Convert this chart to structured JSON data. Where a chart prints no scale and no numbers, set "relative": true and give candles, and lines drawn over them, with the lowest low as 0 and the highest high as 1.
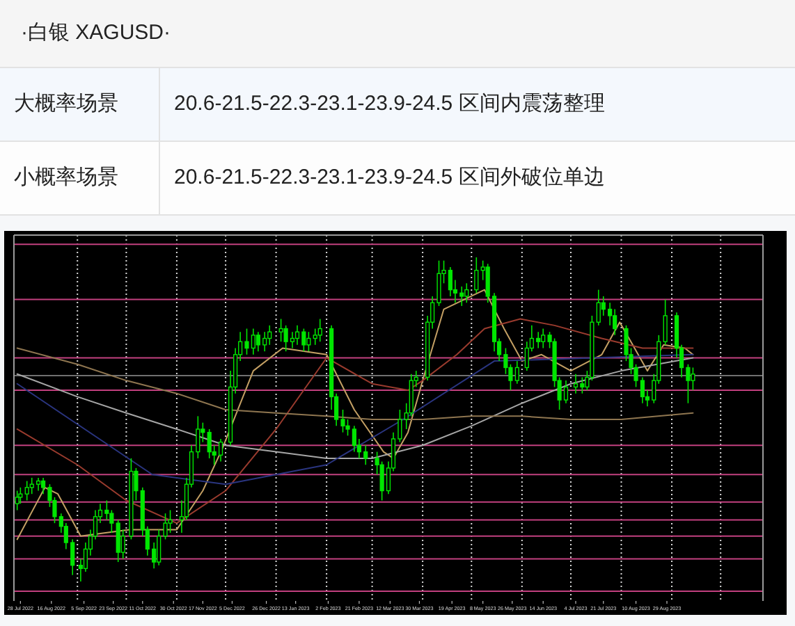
{
  "chart_data": {
    "type": "candlestick",
    "title": "·白银 XAGUSD·",
    "annotations": [
      "大概率场景",
      "20.6-21.5-22.3-23.1-23.9-24.5 区间内震荡整理",
      "小概率场景",
      "20.6-21.5-22.3-23.1-23.9-24.5 区间外破位单边"
    ],
    "relative": true,
    "color": "#00e600",
    "xlim": [
      "2022-07-24",
      "2023-10-27"
    ],
    "xticks": [
      {
        "value": "2022-07-28",
        "label": "28 Jul 2022"
      },
      {
        "value": "2022-08-16",
        "label": "16 Aug 2022"
      },
      {
        "value": "2022-09-05",
        "label": "5 Sep 2022"
      },
      {
        "value": "2022-09-23",
        "label": "23 Sep 2022"
      },
      {
        "value": "2022-10-11",
        "label": "11 Oct 2022"
      },
      {
        "value": "2022-10-30",
        "label": "30 Oct 2022"
      },
      {
        "value": "2022-11-17",
        "label": "17 Nov 2022"
      },
      {
        "value": "2022-12-05",
        "label": "5 Dec 2022"
      },
      {
        "value": "2022-12-26",
        "label": "26 Dec 2022"
      },
      {
        "value": "2023-01-13",
        "label": "13 Jan 2023"
      },
      {
        "value": "2023-02-02",
        "label": "2 Feb 2023"
      },
      {
        "value": "2023-02-21",
        "label": "21 Feb 2023"
      },
      {
        "value": "2023-03-12",
        "label": "12 Mar 2023"
      },
      {
        "value": "2023-03-30",
        "label": "30 Mar 2023"
      },
      {
        "value": "2023-04-19",
        "label": "19 Apr 2023"
      },
      {
        "value": "2023-05-08",
        "label": "8 May 2023"
      },
      {
        "value": "2023-05-26",
        "label": "26 May 2023"
      },
      {
        "value": "2023-06-14",
        "label": "14 Jun 2023"
      },
      {
        "value": "2023-07-04",
        "label": "4 Jul 2023"
      },
      {
        "value": "2023-07-21",
        "label": "21 Jul 2023"
      },
      {
        "value": "2023-08-10",
        "label": "10 Aug 2023"
      },
      {
        "value": "2023-08-29",
        "label": "29 Aug 2023"
      }
    ],
    "x": [
      "2022-07-26",
      "2022-07-28",
      "2022-08-01",
      "2022-08-04",
      "2022-08-08",
      "2022-08-11",
      "2022-08-15",
      "2022-08-18",
      "2022-08-22",
      "2022-08-25",
      "2022-08-29",
      "2022-09-03",
      "2022-09-06",
      "2022-09-09",
      "2022-09-12",
      "2022-09-15",
      "2022-09-19",
      "2022-09-22",
      "2022-09-26",
      "2022-09-29",
      "2022-10-04",
      "2022-10-07",
      "2022-10-11",
      "2022-10-14",
      "2022-10-18",
      "2022-10-21",
      "2022-10-25",
      "2022-10-28",
      "2022-11-04",
      "2022-11-07",
      "2022-11-10",
      "2022-11-14",
      "2022-11-17",
      "2022-11-21",
      "2022-11-24",
      "2022-11-28",
      "2022-12-04",
      "2022-12-07",
      "2022-12-10",
      "2022-12-14",
      "2022-12-18",
      "2022-12-21",
      "2022-12-25",
      "2022-12-28",
      "2023-01-04",
      "2023-01-07",
      "2023-01-11",
      "2023-01-14",
      "2023-01-18",
      "2023-01-21",
      "2023-01-25",
      "2023-01-28",
      "2023-02-04",
      "2023-02-07",
      "2023-02-11",
      "2023-02-14",
      "2023-02-18",
      "2023-02-21",
      "2023-02-25",
      "2023-03-04",
      "2023-03-07",
      "2023-03-11",
      "2023-03-14",
      "2023-03-18",
      "2023-03-22",
      "2023-03-25",
      "2023-03-28",
      "2023-04-04",
      "2023-04-07",
      "2023-04-11",
      "2023-04-14",
      "2023-04-18",
      "2023-04-21",
      "2023-04-25",
      "2023-04-28",
      "2023-05-04",
      "2023-05-08",
      "2023-05-11",
      "2023-05-15",
      "2023-05-18",
      "2023-05-22",
      "2023-05-25",
      "2023-05-29",
      "2023-06-04",
      "2023-06-07",
      "2023-06-11",
      "2023-06-14",
      "2023-06-18",
      "2023-06-21",
      "2023-06-24",
      "2023-06-28",
      "2023-07-04",
      "2023-07-08",
      "2023-07-11",
      "2023-07-14",
      "2023-07-18",
      "2023-07-21",
      "2023-07-25",
      "2023-07-28",
      "2023-08-04",
      "2023-08-07",
      "2023-08-10",
      "2023-08-14",
      "2023-08-17",
      "2023-08-21",
      "2023-08-24",
      "2023-08-28",
      "2023-09-04",
      "2023-09-07",
      "2023-09-11",
      "2023-09-14"
    ],
    "ohlc": [
      [
        0.24,
        0.28,
        0.22,
        0.26
      ],
      [
        0.26,
        0.29,
        0.24,
        0.27
      ],
      [
        0.27,
        0.31,
        0.25,
        0.29
      ],
      [
        0.29,
        0.32,
        0.27,
        0.3
      ],
      [
        0.3,
        0.32,
        0.28,
        0.31
      ],
      [
        0.31,
        0.32,
        0.27,
        0.29
      ],
      [
        0.29,
        0.3,
        0.23,
        0.25
      ],
      [
        0.25,
        0.26,
        0.18,
        0.2
      ],
      [
        0.2,
        0.21,
        0.15,
        0.17
      ],
      [
        0.17,
        0.18,
        0.1,
        0.12
      ],
      [
        0.12,
        0.13,
        0.02,
        0.05
      ],
      [
        0.05,
        0.07,
        0,
        0.04
      ],
      [
        0.04,
        0.12,
        0.03,
        0.1
      ],
      [
        0.1,
        0.16,
        0.08,
        0.14
      ],
      [
        0.14,
        0.22,
        0.13,
        0.2
      ],
      [
        0.2,
        0.24,
        0.18,
        0.22
      ],
      [
        0.22,
        0.25,
        0.19,
        0.21
      ],
      [
        0.21,
        0.22,
        0.15,
        0.18
      ],
      [
        0.18,
        0.19,
        0.06,
        0.09
      ],
      [
        0.09,
        0.16,
        0.07,
        0.14
      ],
      [
        0.14,
        0.38,
        0.13,
        0.34
      ],
      [
        0.34,
        0.35,
        0.25,
        0.28
      ],
      [
        0.28,
        0.29,
        0.14,
        0.16
      ],
      [
        0.16,
        0.17,
        0.08,
        0.1
      ],
      [
        0.1,
        0.12,
        0.04,
        0.06
      ],
      [
        0.06,
        0.16,
        0.05,
        0.14
      ],
      [
        0.14,
        0.21,
        0.13,
        0.18
      ],
      [
        0.18,
        0.22,
        0.15,
        0.19
      ],
      [
        0.19,
        0.25,
        0.15,
        0.2
      ],
      [
        0.2,
        0.32,
        0.19,
        0.3
      ],
      [
        0.3,
        0.42,
        0.29,
        0.4
      ],
      [
        0.4,
        0.51,
        0.38,
        0.47
      ],
      [
        0.47,
        0.49,
        0.43,
        0.46
      ],
      [
        0.46,
        0.47,
        0.38,
        0.4
      ],
      [
        0.4,
        0.42,
        0.36,
        0.39
      ],
      [
        0.39,
        0.44,
        0.37,
        0.43
      ],
      [
        0.43,
        0.65,
        0.42,
        0.6
      ],
      [
        0.6,
        0.72,
        0.58,
        0.7
      ],
      [
        0.7,
        0.77,
        0.68,
        0.74
      ],
      [
        0.74,
        0.78,
        0.7,
        0.72
      ],
      [
        0.72,
        0.78,
        0.7,
        0.76
      ],
      [
        0.76,
        0.77,
        0.71,
        0.73
      ],
      [
        0.73,
        0.77,
        0.71,
        0.75
      ],
      [
        0.75,
        0.79,
        0.73,
        0.77
      ],
      [
        0.77,
        0.81,
        0.74,
        0.78
      ],
      [
        0.78,
        0.79,
        0.71,
        0.74
      ],
      [
        0.74,
        0.77,
        0.72,
        0.75
      ],
      [
        0.75,
        0.79,
        0.73,
        0.77
      ],
      [
        0.77,
        0.78,
        0.71,
        0.73
      ],
      [
        0.73,
        0.77,
        0.71,
        0.75
      ],
      [
        0.75,
        0.78,
        0.73,
        0.76
      ],
      [
        0.76,
        0.81,
        0.74,
        0.78
      ],
      [
        0.78,
        0.79,
        0.53,
        0.57
      ],
      [
        0.57,
        0.58,
        0.48,
        0.5
      ],
      [
        0.5,
        0.53,
        0.46,
        0.48
      ],
      [
        0.48,
        0.5,
        0.45,
        0.47
      ],
      [
        0.47,
        0.48,
        0.4,
        0.42
      ],
      [
        0.42,
        0.44,
        0.38,
        0.4
      ],
      [
        0.4,
        0.42,
        0.36,
        0.38
      ],
      [
        0.38,
        0.4,
        0.33,
        0.36
      ],
      [
        0.36,
        0.37,
        0.25,
        0.28
      ],
      [
        0.28,
        0.37,
        0.27,
        0.35
      ],
      [
        0.35,
        0.46,
        0.34,
        0.44
      ],
      [
        0.44,
        0.53,
        0.43,
        0.5
      ],
      [
        0.5,
        0.55,
        0.47,
        0.52
      ],
      [
        0.52,
        0.64,
        0.51,
        0.62
      ],
      [
        0.62,
        0.65,
        0.6,
        0.63
      ],
      [
        0.63,
        0.82,
        0.62,
        0.8
      ],
      [
        0.8,
        0.88,
        0.78,
        0.86
      ],
      [
        0.86,
        0.99,
        0.85,
        0.95
      ],
      [
        0.95,
        0.99,
        0.92,
        0.96
      ],
      [
        0.96,
        0.97,
        0.88,
        0.9
      ],
      [
        0.9,
        0.93,
        0.86,
        0.89
      ],
      [
        0.89,
        0.91,
        0.85,
        0.88
      ],
      [
        0.88,
        0.92,
        0.86,
        0.9
      ],
      [
        0.9,
        1,
        0.89,
        0.96
      ],
      [
        0.96,
        0.99,
        0.93,
        0.97
      ],
      [
        0.97,
        0.98,
        0.86,
        0.88
      ],
      [
        0.88,
        0.89,
        0.71,
        0.74
      ],
      [
        0.74,
        0.75,
        0.68,
        0.7
      ],
      [
        0.7,
        0.72,
        0.64,
        0.66
      ],
      [
        0.66,
        0.67,
        0.59,
        0.62
      ],
      [
        0.62,
        0.68,
        0.61,
        0.66
      ],
      [
        0.66,
        0.74,
        0.65,
        0.72
      ],
      [
        0.72,
        0.79,
        0.71,
        0.75
      ],
      [
        0.75,
        0.77,
        0.72,
        0.74
      ],
      [
        0.74,
        0.78,
        0.72,
        0.76
      ],
      [
        0.76,
        0.77,
        0.72,
        0.74
      ],
      [
        0.74,
        0.75,
        0.6,
        0.62
      ],
      [
        0.62,
        0.63,
        0.53,
        0.56
      ],
      [
        0.56,
        0.62,
        0.55,
        0.6
      ],
      [
        0.6,
        0.64,
        0.58,
        0.61
      ],
      [
        0.61,
        0.63,
        0.58,
        0.6
      ],
      [
        0.6,
        0.65,
        0.59,
        0.63
      ],
      [
        0.63,
        0.82,
        0.62,
        0.8
      ],
      [
        0.8,
        0.9,
        0.79,
        0.86
      ],
      [
        0.86,
        0.88,
        0.82,
        0.84
      ],
      [
        0.84,
        0.86,
        0.79,
        0.82
      ],
      [
        0.82,
        0.84,
        0.76,
        0.78
      ],
      [
        0.78,
        0.79,
        0.68,
        0.7
      ],
      [
        0.7,
        0.72,
        0.64,
        0.66
      ],
      [
        0.66,
        0.67,
        0.6,
        0.62
      ],
      [
        0.62,
        0.63,
        0.55,
        0.57
      ],
      [
        0.57,
        0.59,
        0.54,
        0.56
      ],
      [
        0.56,
        0.64,
        0.55,
        0.62
      ],
      [
        0.62,
        0.76,
        0.61,
        0.74
      ],
      [
        0.74,
        0.87,
        0.73,
        0.82
      ],
      [
        0.82,
        0.83,
        0.69,
        0.72
      ],
      [
        0.72,
        0.73,
        0.63,
        0.66
      ],
      [
        0.66,
        0.67,
        0.55,
        0.62
      ],
      [
        0.62,
        0.66,
        0.59,
        0.64
      ]
    ],
    "series": [
      {
        "type": "line",
        "color": "#c4a064",
        "x": [
          "2022-07-26",
          "2022-08-12",
          "2022-08-20",
          "2022-09-03",
          "2022-10-03",
          "2022-11-01",
          "2022-11-17",
          "2022-11-29",
          "2022-12-18",
          "2023-01-05",
          "2023-02-01",
          "2023-02-18",
          "2023-03-08",
          "2023-03-14",
          "2023-03-23",
          "2023-04-01",
          "2023-04-14",
          "2023-05-09",
          "2023-05-21",
          "2023-06-01",
          "2023-06-13",
          "2023-07-01",
          "2023-07-20",
          "2023-07-31",
          "2023-08-08",
          "2023-08-17",
          "2023-08-27",
          "2023-09-09",
          "2023-09-14"
        ],
        "values": [
          0.13,
          0.29,
          0.27,
          0.14,
          0.16,
          0.16,
          0.28,
          0.41,
          0.65,
          0.72,
          0.7,
          0.53,
          0.4,
          0.38,
          0.46,
          0.62,
          0.84,
          0.9,
          0.78,
          0.68,
          0.7,
          0.65,
          0.7,
          0.8,
          0.73,
          0.65,
          0.73,
          0.72,
          0.7
        ]
      },
      {
        "type": "line",
        "color": "#9a3b2e",
        "x": [
          "2022-07-26",
          "2022-09-01",
          "2022-10-01",
          "2022-11-01",
          "2022-12-01",
          "2023-01-01",
          "2023-02-01",
          "2023-03-01",
          "2023-03-23",
          "2023-04-01",
          "2023-04-22",
          "2023-05-09",
          "2023-05-31",
          "2023-06-21",
          "2023-07-20",
          "2023-08-14",
          "2023-09-14"
        ],
        "values": [
          0.47,
          0.36,
          0.25,
          0.18,
          0.28,
          0.47,
          0.69,
          0.61,
          0.59,
          0.62,
          0.7,
          0.78,
          0.81,
          0.79,
          0.75,
          0.72,
          0.72
        ]
      },
      {
        "type": "line",
        "color": "#a6a6a6",
        "x": [
          "2022-07-26",
          "2022-09-01",
          "2022-10-01",
          "2022-11-01",
          "2022-12-01",
          "2023-01-01",
          "2023-02-01",
          "2023-03-01",
          "2023-04-01",
          "2023-05-01",
          "2023-06-01",
          "2023-07-01",
          "2023-08-01",
          "2023-09-14"
        ],
        "values": [
          0.64,
          0.57,
          0.52,
          0.47,
          0.42,
          0.4,
          0.38,
          0.38,
          0.42,
          0.48,
          0.55,
          0.61,
          0.65,
          0.69
        ]
      },
      {
        "type": "line",
        "color": "#8f7650",
        "x": [
          "2022-07-26",
          "2022-09-01",
          "2022-10-01",
          "2022-11-01",
          "2022-12-01",
          "2023-01-01",
          "2023-02-01",
          "2023-03-01",
          "2023-04-01",
          "2023-05-01",
          "2023-06-01",
          "2023-07-01",
          "2023-08-01",
          "2023-09-14"
        ],
        "values": [
          0.72,
          0.67,
          0.62,
          0.58,
          0.53,
          0.52,
          0.51,
          0.5,
          0.5,
          0.51,
          0.51,
          0.5,
          0.5,
          0.52
        ]
      },
      {
        "type": "line",
        "color": "#2a3580",
        "x": [
          "2022-07-26",
          "2022-10-17",
          "2022-12-01",
          "2023-02-01",
          "2023-03-20",
          "2023-05-15",
          "2023-09-14"
        ],
        "values": [
          0.61,
          0.33,
          0.3,
          0.36,
          0.5,
          0.68,
          0.7
        ]
      }
    ],
    "ref_lines": [
      {
        "axis": "x",
        "value": "2022-09-01",
        "color": "#d9d9d9",
        "line_style": "dotted"
      },
      {
        "axis": "x",
        "value": "2022-10-01",
        "color": "#d9d9d9",
        "line_style": "dotted"
      },
      {
        "axis": "x",
        "value": "2022-11-01",
        "color": "#d9d9d9",
        "line_style": "dotted"
      },
      {
        "axis": "x",
        "value": "2022-12-01",
        "color": "#d9d9d9",
        "line_style": "dotted"
      },
      {
        "axis": "x",
        "value": "2023-01-01",
        "color": "#d9d9d9",
        "line_style": "dotted"
      },
      {
        "axis": "x",
        "value": "2023-02-01",
        "color": "#d9d9d9",
        "line_style": "dotted"
      },
      {
        "axis": "x",
        "value": "2023-03-01",
        "color": "#d9d9d9",
        "line_style": "dotted"
      },
      {
        "axis": "x",
        "value": "2023-04-01",
        "color": "#d9d9d9",
        "line_style": "dotted"
      },
      {
        "axis": "x",
        "value": "2023-05-01",
        "color": "#d9d9d9",
        "line_style": "dotted"
      },
      {
        "axis": "x",
        "value": "2023-06-01",
        "color": "#d9d9d9",
        "line_style": "dotted"
      },
      {
        "axis": "x",
        "value": "2023-07-01",
        "color": "#d9d9d9",
        "line_style": "dotted"
      },
      {
        "axis": "x",
        "value": "2023-08-01",
        "color": "#d9d9d9",
        "line_style": "dotted"
      },
      {
        "axis": "x",
        "value": "2023-09-01",
        "color": "#d9d9d9",
        "line_style": "dotted"
      },
      {
        "axis": "x",
        "value": "2023-10-01",
        "color": "#d9d9d9",
        "line_style": "dotted"
      },
      {
        "axis": "y",
        "value": 1.04,
        "color": "#c2407f"
      },
      {
        "axis": "y",
        "value": 0.87,
        "color": "#c2407f"
      },
      {
        "axis": "y",
        "value": 0.69,
        "color": "#c2407f"
      },
      {
        "axis": "y",
        "value": 0.59,
        "color": "#c2407f"
      },
      {
        "axis": "y",
        "value": 0.42,
        "color": "#c2407f"
      },
      {
        "axis": "y",
        "value": 0.33,
        "color": "#c2407f"
      },
      {
        "axis": "y",
        "value": 0.245,
        "color": "#c2407f"
      },
      {
        "axis": "y",
        "value": 0.19,
        "color": "#c2407f"
      },
      {
        "axis": "y",
        "value": 0.14,
        "color": "#c2407f"
      },
      {
        "axis": "y",
        "value": 0.07,
        "color": "#c2407f"
      },
      {
        "axis": "y",
        "value": -0.03,
        "color": "#c2407f"
      },
      {
        "axis": "y",
        "value": 0.635,
        "color": "#707070"
      }
    ]
  }
}
